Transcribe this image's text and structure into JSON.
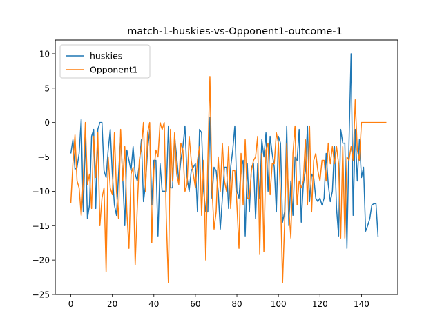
{
  "chart_data": {
    "type": "line",
    "title": "match-1-huskies-vs-Opponent1-outcome-1",
    "xlabel": "",
    "ylabel": "",
    "xlim": [
      -7.5,
      157.5
    ],
    "ylim": [
      -25,
      12
    ],
    "xticks": [
      0,
      20,
      40,
      60,
      80,
      100,
      120,
      140
    ],
    "yticks": [
      -25,
      -20,
      -15,
      -10,
      -5,
      0,
      5,
      10
    ],
    "grid": false,
    "legend_position": "top-left",
    "series": [
      {
        "name": "huskies",
        "color": "#1f77b4",
        "values": [
          -4.5,
          -2.5,
          -6.8,
          -6.5,
          -4.5,
          0.5,
          -13.0,
          -2.0,
          -14.0,
          -12.0,
          -2.0,
          -1.0,
          -12.5,
          -1.0,
          0.0,
          0.0,
          -7.0,
          -8.0,
          -4.0,
          -1.0,
          -7.5,
          -12.0,
          -13.5,
          -7.5,
          -2.0,
          -8.0,
          -15.0,
          -4.0,
          -5.5,
          -7.0,
          -3.5,
          -7.5,
          -8.5,
          -6.0,
          -2.5,
          -11.5,
          -9.0,
          -4.0,
          -1.0,
          -12.0,
          -5.5,
          -5.5,
          -16.5,
          -6.0,
          -10.0,
          -10.0,
          -10.0,
          -0.5,
          -9.5,
          -9.5,
          -2.0,
          -5.0,
          -8.5,
          -5.5,
          -3.5,
          -0.5,
          -8.0,
          -10.0,
          -7.0,
          -6.5,
          -6.0,
          -13.0,
          -1.0,
          -1.5,
          -10.0,
          -13.0,
          -13.0,
          0.8,
          -11.0,
          -6.5,
          -7.0,
          -10.0,
          -15.5,
          -11.0,
          -6.5,
          -6.5,
          -12.5,
          -6.5,
          -4.0,
          -0.5,
          -10.0,
          -11.0,
          -6.5,
          -5.5,
          -16.5,
          -6.0,
          -13.0,
          -6.5,
          -6.0,
          -14.0,
          -6.0,
          -11.0,
          -2.5,
          -5.0,
          -1.5,
          -10.0,
          -2.0,
          -4.5,
          -6.5,
          -13.0,
          -2.0,
          -3.0,
          -14.5,
          -13.0,
          -0.5,
          -15.0,
          -8.5,
          -13.5,
          -5.0,
          -5.5,
          -1.0,
          -14.5,
          -9.0,
          -7.0,
          -0.5,
          -11.5,
          -7.5,
          -8.0,
          -11.0,
          -11.5,
          -11.0,
          -12.0,
          -11.0,
          -4.5,
          -9.0,
          -11.5,
          -10.0,
          -3.5,
          -12.5,
          -16.5,
          -1.0,
          -3.0,
          -3.0,
          -18.3,
          -3.0,
          10.0,
          -13.5,
          -1.0,
          -8.5,
          -2.5,
          -8.0,
          -6.5,
          -15.8,
          -15.0,
          -14.0,
          -12.0,
          -11.8,
          -11.8,
          -16.6
        ]
      },
      {
        "name": "Opponent1",
        "color": "#ff7f0e",
        "values": [
          -11.7,
          -6.0,
          -1.8,
          -8.5,
          -9.5,
          -13.5,
          -8.5,
          0.0,
          -9.0,
          -7.5,
          -12.5,
          -2.0,
          -8.0,
          -1.5,
          -15.0,
          -11.0,
          -9.5,
          -21.7,
          -5.0,
          -9.5,
          -10.5,
          -1.5,
          -10.0,
          -14.0,
          -1.0,
          -8.5,
          -3.5,
          -13.0,
          -18.3,
          -7.5,
          -6.5,
          -20.7,
          -12.5,
          -5.5,
          -3.5,
          0.0,
          -10.0,
          -1.5,
          0.0,
          -17.5,
          -7.0,
          -4.0,
          -5.0,
          0.0,
          -1.0,
          0.0,
          -14.0,
          -23.3,
          -1.0,
          -8.5,
          -1.5,
          -7.5,
          -9.0,
          -3.0,
          -4.0,
          -10.0,
          -9.0,
          -2.0,
          -5.5,
          -7.5,
          -9.5,
          -5.5,
          -3.5,
          -13.5,
          -5.5,
          -20.0,
          -5.5,
          6.7,
          -9.5,
          -15.5,
          -13.0,
          -5.0,
          -10.0,
          -3.0,
          -8.5,
          -10.0,
          -3.5,
          -12.5,
          -7.0,
          -7.0,
          -12.0,
          -18.3,
          -4.5,
          -12.0,
          -2.5,
          -11.0,
          -11.0,
          -7.0,
          -5.5,
          -5.0,
          -2.0,
          -19.2,
          -4.5,
          -18.8,
          -4.0,
          -3.0,
          -10.5,
          -6.0,
          -6.0,
          -1.5,
          -3.0,
          -10.5,
          -23.3,
          -14.5,
          -3.0,
          -12.5,
          -16.8,
          -4.5,
          -0.5,
          -12.0,
          -8.5,
          -9.5,
          -8.5,
          -2.5,
          -12.0,
          -0.5,
          -13.0,
          -5.5,
          -4.5,
          -7.0,
          -8.5,
          -5.5,
          -5.5,
          -8.5,
          -3.0,
          -6.0,
          -3.5,
          -6.0,
          -3.5,
          -6.0,
          -16.8,
          -3.5,
          -16.8,
          -5.0,
          -5.5,
          -3.5,
          -5.5,
          3.3,
          -4.0,
          -5.5,
          0.0,
          0.0,
          0.0,
          0.0,
          0.0,
          0.0,
          0.0,
          0.0,
          0.0,
          0.0,
          0.0,
          0.0,
          0.0
        ]
      }
    ]
  }
}
